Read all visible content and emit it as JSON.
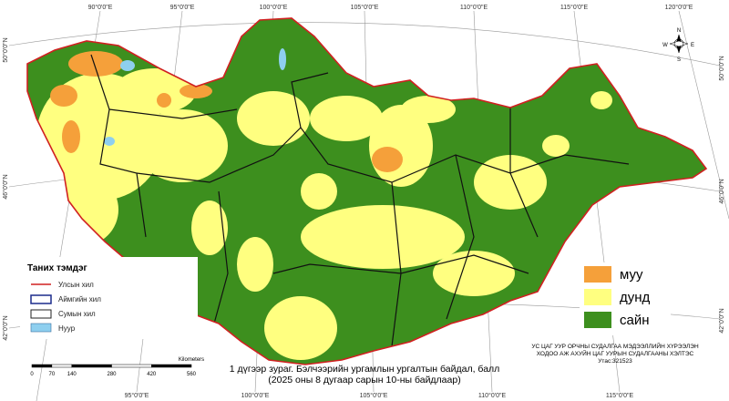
{
  "graticule": {
    "top": [
      "90°0'0\"E",
      "95°0'0\"E",
      "100°0'0\"E",
      "105°0'0\"E",
      "110°0'0\"E",
      "115°0'0\"E",
      "120°0'0\"E"
    ],
    "bottom": [
      "95°0'0\"E",
      "100°0'0\"E",
      "105°0'0\"E",
      "110°0'0\"E",
      "115°0'0\"E"
    ],
    "left": [
      "50°0'0\"N",
      "46°0'0\"N",
      "42°0'0\"N"
    ],
    "right": [
      "50°0'0\"N",
      "46°0'0\"N",
      "42°0'0\"N"
    ]
  },
  "compass": [
    "N",
    "E",
    "S",
    "W"
  ],
  "legend": {
    "title": "Таних тэмдэг",
    "items": [
      "Улсын хил",
      "Аймгийн хил",
      "Сумын хил",
      "Нуур"
    ]
  },
  "classes": {
    "items": [
      {
        "label": "муу",
        "color": "#f5a03a"
      },
      {
        "label": "дунд",
        "color": "#ffff80"
      },
      {
        "label": "сайн",
        "color": "#3d8f1e"
      }
    ]
  },
  "scale": {
    "unit": "Kilometers",
    "ticks": [
      0,
      70,
      140,
      280,
      420,
      560
    ]
  },
  "caption": [
    "1 дүгээр зураг. Бэлчээрийн ургамлын ургалтын байдал, балл",
    "(2025 оны 8 дугаар сарын 10-ны байдлаар)"
  ],
  "source": [
    "УС ЦАГ УУР ОРЧНЫ СУДАЛГАА МЭДЭЭЛЛИЙН ХҮРЭЭЛЭН",
    "ХОДОО АЖ АХУЙН ЦАГ УУРЫН СУДАЛГААНЫ ХЭЛТЭС",
    "Утас:321523"
  ]
}
